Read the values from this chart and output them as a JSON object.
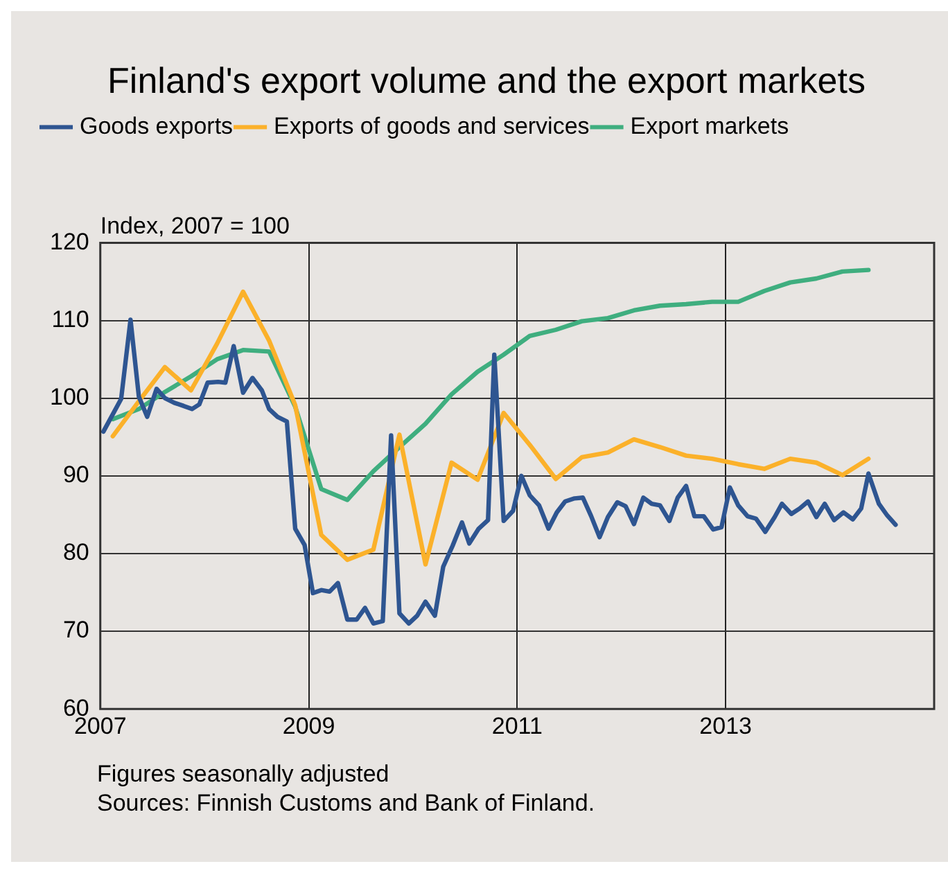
{
  "chart_data": {
    "type": "line",
    "title": "Finland's export volume and the export markets",
    "ylabel": "Index, 2007 = 100",
    "xlim": [
      2007,
      2015
    ],
    "xticks": [
      2007,
      2009,
      2011,
      2013
    ],
    "ylim": [
      60,
      120
    ],
    "yticks": [
      60,
      70,
      80,
      90,
      100,
      110,
      120
    ],
    "grid": true,
    "legend": "top left",
    "marker": "none",
    "line_style": "solid",
    "annotations": [
      "Figures seasonally adjusted",
      "Sources: Finnish Customs and Bank of Finland."
    ],
    "series": [
      {
        "name": "Goods exports",
        "color": "#2e5591",
        "x": [
          2007.03,
          2007.2,
          2007.29,
          2007.37,
          2007.45,
          2007.54,
          2007.62,
          2007.71,
          2007.8,
          2007.88,
          2007.95,
          2008.03,
          2008.13,
          2008.2,
          2008.28,
          2008.37,
          2008.46,
          2008.55,
          2008.62,
          2008.7,
          2008.79,
          2008.87,
          2008.96,
          2009.04,
          2009.12,
          2009.2,
          2009.28,
          2009.37,
          2009.46,
          2009.54,
          2009.62,
          2009.71,
          2009.79,
          2009.87,
          2009.96,
          2010.04,
          2010.12,
          2010.21,
          2010.29,
          2010.38,
          2010.47,
          2010.54,
          2010.63,
          2010.72,
          2010.78,
          2010.87,
          2010.96,
          2011.04,
          2011.12,
          2011.21,
          2011.3,
          2011.38,
          2011.46,
          2011.55,
          2011.63,
          2011.71,
          2011.79,
          2011.87,
          2011.96,
          2012.04,
          2012.12,
          2012.21,
          2012.29,
          2012.37,
          2012.46,
          2012.54,
          2012.62,
          2012.7,
          2012.79,
          2012.88,
          2012.96,
          2013.04,
          2013.12,
          2013.21,
          2013.29,
          2013.38,
          2013.47,
          2013.54,
          2013.63,
          2013.71,
          2013.79,
          2013.87,
          2013.95,
          2014.04,
          2014.13,
          2014.22,
          2014.3,
          2014.37,
          2014.47,
          2014.55,
          2014.63
        ],
        "values": [
          95.7,
          99.9,
          110.1,
          100.2,
          97.6,
          101.2,
          100.0,
          99.4,
          99.0,
          98.6,
          99.2,
          102.0,
          102.1,
          102.0,
          106.7,
          100.7,
          102.6,
          101.0,
          98.6,
          97.6,
          97.0,
          83.2,
          81.1,
          74.9,
          75.3,
          75.1,
          76.2,
          71.5,
          71.5,
          73.0,
          71.0,
          71.3,
          95.2,
          72.3,
          71.0,
          72.0,
          73.8,
          72.0,
          78.3,
          81.0,
          84.0,
          81.3,
          83.2,
          84.3,
          105.6,
          84.2,
          85.5,
          90.0,
          87.5,
          86.2,
          83.2,
          85.3,
          86.7,
          87.1,
          87.2,
          84.8,
          82.1,
          84.7,
          86.6,
          86.1,
          83.8,
          87.2,
          86.4,
          86.2,
          84.2,
          87.2,
          88.7,
          84.8,
          84.8,
          83.1,
          83.4,
          88.5,
          86.2,
          84.8,
          84.5,
          82.8,
          84.7,
          86.4,
          85.1,
          85.8,
          86.7,
          84.7,
          86.4,
          84.3,
          85.3,
          84.4,
          85.8,
          90.3,
          86.4,
          84.9,
          83.7
        ]
      },
      {
        "name": "Exports of goods and services",
        "color": "#fbb12a",
        "x": [
          2007.12,
          2007.37,
          2007.62,
          2007.87,
          2008.12,
          2008.37,
          2008.62,
          2008.87,
          2009.12,
          2009.37,
          2009.62,
          2009.87,
          2010.12,
          2010.37,
          2010.62,
          2010.87,
          2011.12,
          2011.37,
          2011.62,
          2011.87,
          2012.12,
          2012.37,
          2012.62,
          2012.87,
          2013.12,
          2013.37,
          2013.62,
          2013.87,
          2014.12,
          2014.37
        ],
        "values": [
          95.1,
          99.6,
          104.0,
          101.0,
          107.0,
          113.7,
          107.4,
          99.1,
          82.4,
          79.2,
          80.5,
          95.3,
          78.6,
          91.7,
          89.5,
          98.1,
          94.0,
          89.6,
          92.4,
          93.0,
          94.7,
          93.7,
          92.6,
          92.2,
          91.5,
          90.9,
          92.2,
          91.7,
          90.1,
          92.2
        ]
      },
      {
        "name": "Export markets",
        "color": "#3fae7f",
        "x": [
          2007.12,
          2007.37,
          2007.62,
          2007.87,
          2008.12,
          2008.37,
          2008.62,
          2008.87,
          2009.12,
          2009.37,
          2009.62,
          2009.87,
          2010.12,
          2010.37,
          2010.62,
          2010.87,
          2011.12,
          2011.37,
          2011.62,
          2011.87,
          2012.12,
          2012.37,
          2012.62,
          2012.87,
          2013.12,
          2013.37,
          2013.62,
          2013.87,
          2014.12,
          2014.37
        ],
        "values": [
          97.3,
          98.6,
          100.8,
          102.8,
          105.0,
          106.2,
          106.0,
          98.9,
          88.3,
          86.9,
          90.6,
          93.7,
          96.7,
          100.5,
          103.4,
          105.6,
          108.0,
          108.8,
          109.9,
          110.3,
          111.3,
          111.9,
          112.1,
          112.4,
          112.4,
          113.8,
          114.9,
          115.4,
          116.3,
          116.5
        ]
      }
    ]
  }
}
